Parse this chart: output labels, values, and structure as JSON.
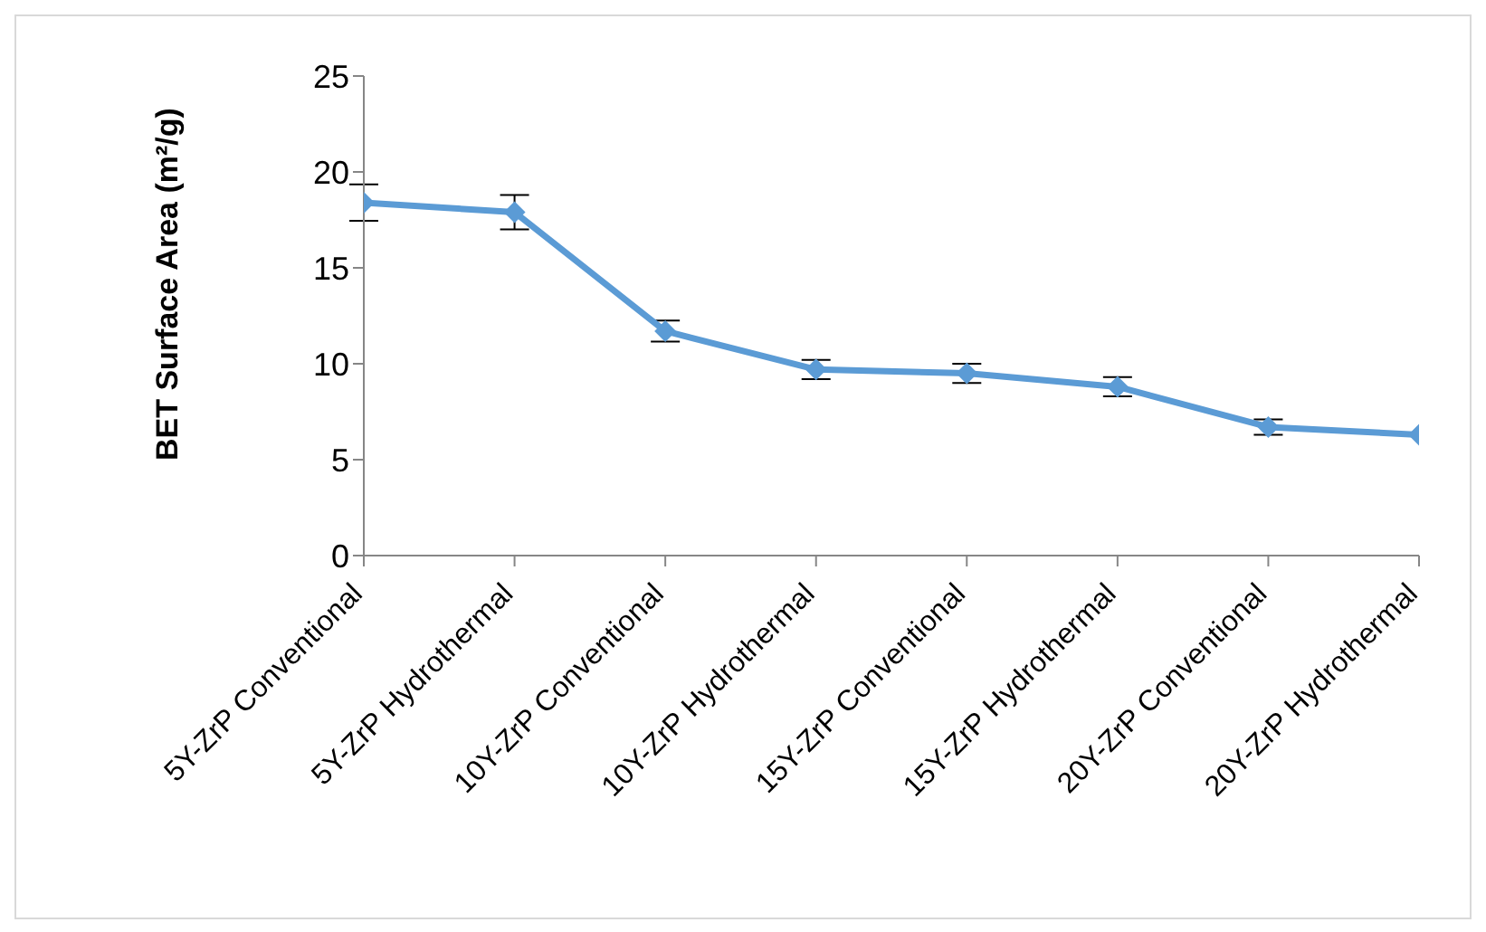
{
  "chart_data": {
    "type": "line",
    "ylabel": "BET Surface Area (m²/g)",
    "categories": [
      "5Y-ZrP Conventional",
      "5Y-ZrP Hydrothermal",
      "10Y-ZrP Conventional",
      "10Y-ZrP Hydrothermal",
      "15Y-ZrP Conventional",
      "15Y-ZrP Hydrothermal",
      "20Y-ZrP Conventional",
      "20Y-ZrP Hydrothermal"
    ],
    "series": [
      {
        "color": "#5b9bd5",
        "values": [
          18.4,
          17.9,
          11.7,
          9.7,
          9.5,
          8.8,
          6.7,
          6.3
        ],
        "errors": [
          0.95,
          0.9,
          0.55,
          0.5,
          0.5,
          0.5,
          0.4,
          null
        ]
      }
    ],
    "ylim": [
      0,
      25
    ],
    "yticks": [
      0,
      5,
      10,
      15,
      20,
      25
    ],
    "grid": false,
    "legend": false,
    "marker": "diamond",
    "line_style": "solid"
  }
}
